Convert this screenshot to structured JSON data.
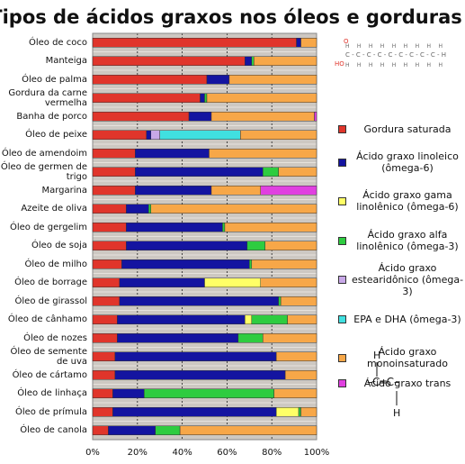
{
  "chart_data": {
    "type": "stacked-bar-horizontal",
    "title": "Tipos de ácidos graxos nos óleos e gorduras",
    "categories": [
      "Óleo de coco",
      "Manteiga",
      "Óleo de palma",
      "Gordura da carne vermelha",
      "Banha de porco",
      "Óleo de peixe",
      "Óleo de amendoim",
      "Óleo de germen de trigo",
      "Margarina",
      "Azeite de oliva",
      "Óleo de gergelim",
      "Óleo de soja",
      "Óleo de milho",
      "Óleo de borrage",
      "Óleo de girassol",
      "Óleo de cânhamo",
      "Óleo de nozes",
      "Óleo de semente de uva",
      "Óleo de cártamo",
      "Óleo de linhaça",
      "Óleo de prímula",
      "Óleo de canola"
    ],
    "series": [
      {
        "name": "Gordura saturada",
        "color": "#e0352b",
        "values": [
          91,
          68,
          51,
          48,
          43,
          24,
          19,
          19,
          19,
          15,
          15,
          15,
          13,
          12,
          12,
          11,
          11,
          10,
          10,
          9,
          9,
          7
        ]
      },
      {
        "name": "Ácido graxo linoleico (ômega-6)",
        "color": "#1414a0",
        "values": [
          2,
          3,
          10,
          2,
          10,
          2,
          33,
          57,
          34,
          10,
          43,
          54,
          57,
          38,
          71,
          57,
          54,
          72,
          76,
          14,
          73,
          21
        ]
      },
      {
        "name": "Ácido graxo gama linolênico (ômega-6)",
        "color": "#ffff66",
        "values": [
          0,
          0,
          0,
          0,
          0,
          0,
          0,
          0,
          0,
          0,
          0,
          0,
          0,
          25,
          0,
          3,
          0,
          0,
          0,
          0,
          10,
          0
        ]
      },
      {
        "name": "Ácido graxo alfa linolênico (ômega-3)",
        "color": "#2ecc40",
        "values": [
          0,
          1,
          0,
          1,
          0,
          0,
          0,
          7,
          0,
          1,
          1,
          8,
          1,
          0,
          1,
          16,
          11,
          0,
          0,
          58,
          1,
          11
        ]
      },
      {
        "name": "Ácido graxo estearidônico (ômega-3)",
        "color": "#c8a8e8",
        "values": [
          0,
          0,
          0,
          0,
          0,
          4,
          0,
          0,
          0,
          0,
          0,
          0,
          0,
          0,
          0,
          0,
          0,
          0,
          0,
          0,
          0,
          0
        ]
      },
      {
        "name": "EPA e DHA (ômega-3)",
        "color": "#40e0e0",
        "values": [
          0,
          0,
          0,
          0,
          0,
          36,
          0,
          0,
          0,
          0,
          0,
          0,
          0,
          0,
          0,
          0,
          0,
          0,
          0,
          0,
          0,
          0
        ]
      },
      {
        "name": "Ácido graxo monoinsaturado",
        "color": "#f7a748",
        "values": [
          7,
          28,
          39,
          49,
          46,
          34,
          48,
          17,
          22,
          74,
          41,
          23,
          29,
          25,
          16,
          13,
          24,
          18,
          14,
          19,
          7,
          61
        ]
      },
      {
        "name": "Ácido graxo trans",
        "color": "#e040e0",
        "values": [
          0,
          0,
          0,
          0,
          1,
          0,
          0,
          0,
          25,
          0,
          0,
          0,
          0,
          0,
          0,
          0,
          0,
          0,
          0,
          0,
          0,
          0
        ]
      }
    ],
    "xlim": [
      0,
      100
    ],
    "xticks": [
      {
        "value": 0,
        "label": "0%"
      },
      {
        "value": 20,
        "label": "20%"
      },
      {
        "value": 40,
        "label": "40%"
      },
      {
        "value": 60,
        "label": "60%"
      },
      {
        "value": 80,
        "label": "80%"
      },
      {
        "value": 100,
        "label": "100%"
      }
    ],
    "grid": true
  },
  "diagrams": {
    "fatty_acid": {
      "oxygen": "O",
      "hydroxyl": "HO",
      "chain": "C-C-C-C-C-C-C-C-C-H",
      "hydrogens": "H H H H H H H H H"
    },
    "double_bond": {
      "h_top": "H",
      "chain": "–C═C–",
      "h_bottom": "H"
    }
  }
}
